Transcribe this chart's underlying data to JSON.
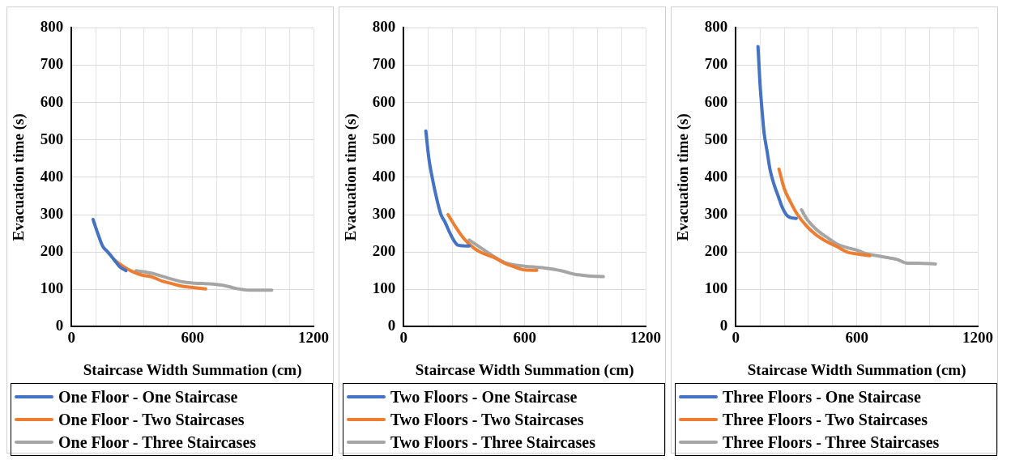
{
  "chart_data": [
    {
      "type": "line",
      "xlabel": "Staircase Width Summation (cm)",
      "ylabel": "Evacuation time (s)",
      "xlim": [
        0,
        1200
      ],
      "xticks": [
        0,
        {
          "value": 120,
          "label": null
        },
        {
          "value": 240,
          "label": null
        },
        {
          "value": 360,
          "label": null
        },
        {
          "value": 480,
          "label": null
        },
        600,
        {
          "value": 720,
          "label": null
        },
        {
          "value": 840,
          "label": null
        },
        {
          "value": 960,
          "label": null
        },
        {
          "value": 1080,
          "label": null
        },
        1200
      ],
      "ylim": [
        0,
        800
      ],
      "yticks": [
        0,
        100,
        200,
        300,
        400,
        500,
        600,
        700,
        800
      ],
      "grid": true,
      "legend": "bottom",
      "marker": "none",
      "line_style": "solid",
      "series": [
        {
          "name": "One Floor - One Staircase",
          "color": "#4472c4",
          "x": [
            107,
            130,
            155,
            180,
            210,
            240,
            270
          ],
          "values": [
            287,
            250,
            215,
            200,
            180,
            160,
            150
          ]
        },
        {
          "name": "One Floor - Two Staircases",
          "color": "#ed7d31",
          "x": [
            215,
            260,
            300,
            350,
            400,
            450,
            500,
            550,
            600,
            665
          ],
          "values": [
            177,
            160,
            148,
            138,
            133,
            122,
            115,
            108,
            105,
            101
          ]
        },
        {
          "name": "One Floor - Three Staircases",
          "color": "#a5a5a5",
          "x": [
            320,
            400,
            450,
            500,
            550,
            600,
            700,
            760,
            820,
            880,
            993
          ],
          "values": [
            150,
            143,
            135,
            127,
            120,
            117,
            114,
            110,
            102,
            98,
            98
          ]
        }
      ]
    },
    {
      "type": "line",
      "xlabel": "Staircase Width Summation (cm)",
      "ylabel": "Evacuation time (s)",
      "xlim": [
        0,
        1200
      ],
      "xticks": [
        0,
        {
          "value": 120,
          "label": null
        },
        {
          "value": 240,
          "label": null
        },
        {
          "value": 360,
          "label": null
        },
        {
          "value": 480,
          "label": null
        },
        600,
        {
          "value": 720,
          "label": null
        },
        {
          "value": 840,
          "label": null
        },
        {
          "value": 960,
          "label": null
        },
        {
          "value": 1080,
          "label": null
        },
        1200
      ],
      "ylim": [
        0,
        800
      ],
      "yticks": [
        0,
        100,
        200,
        300,
        400,
        500,
        600,
        700,
        800
      ],
      "grid": true,
      "legend": "bottom",
      "marker": "none",
      "line_style": "solid",
      "series": [
        {
          "name": "Two Floors - One Staircase",
          "color": "#4472c4",
          "x": [
            110,
            125,
            145,
            165,
            185,
            205,
            230,
            250,
            270,
            325
          ],
          "values": [
            524,
            450,
            390,
            340,
            300,
            280,
            250,
            230,
            218,
            216
          ]
        },
        {
          "name": "Two Floors - Two Staircases",
          "color": "#ed7d31",
          "x": [
            220,
            260,
            300,
            350,
            400,
            450,
            500,
            550,
            600,
            660
          ],
          "values": [
            300,
            265,
            235,
            210,
            195,
            185,
            170,
            160,
            152,
            151
          ]
        },
        {
          "name": "Two Floors - Three Staircases",
          "color": "#a5a5a5",
          "x": [
            325,
            400,
            450,
            500,
            550,
            600,
            700,
            780,
            850,
            920,
            990
          ],
          "values": [
            232,
            205,
            187,
            172,
            165,
            162,
            157,
            150,
            140,
            136,
            134
          ]
        }
      ]
    },
    {
      "type": "line",
      "xlabel": "Staircase Width Summation (cm)",
      "ylabel": "Evacuation time (s)",
      "xlim": [
        0,
        1200
      ],
      "xticks": [
        0,
        {
          "value": 120,
          "label": null
        },
        {
          "value": 240,
          "label": null
        },
        {
          "value": 360,
          "label": null
        },
        {
          "value": 480,
          "label": null
        },
        600,
        {
          "value": 720,
          "label": null
        },
        {
          "value": 840,
          "label": null
        },
        {
          "value": 960,
          "label": null
        },
        {
          "value": 1080,
          "label": null
        },
        1200
      ],
      "ylim": [
        0,
        800
      ],
      "yticks": [
        0,
        100,
        200,
        300,
        400,
        500,
        600,
        700,
        800
      ],
      "grid": true,
      "legend": "bottom",
      "marker": "none",
      "line_style": "solid",
      "series": [
        {
          "name": "Three Floors - One Staircase",
          "color": "#4472c4",
          "x": [
            110,
            120,
            130,
            140,
            155,
            170,
            190,
            210,
            230,
            250,
            270,
            300
          ],
          "values": [
            750,
            650,
            580,
            520,
            470,
            420,
            380,
            350,
            320,
            300,
            292,
            290
          ]
        },
        {
          "name": "Three Floors - Two Staircases",
          "color": "#ed7d31",
          "x": [
            214,
            240,
            270,
            300,
            350,
            400,
            450,
            500,
            550,
            600,
            665
          ],
          "values": [
            422,
            370,
            335,
            305,
            270,
            245,
            228,
            215,
            200,
            195,
            190
          ]
        },
        {
          "name": "Three Floors - Three Staircases",
          "color": "#a5a5a5",
          "x": [
            326,
            350,
            400,
            450,
            500,
            550,
            600,
            650,
            700,
            750,
            800,
            850,
            900,
            990
          ],
          "values": [
            313,
            290,
            260,
            240,
            222,
            212,
            205,
            195,
            190,
            185,
            180,
            170,
            170,
            168
          ]
        }
      ]
    }
  ]
}
